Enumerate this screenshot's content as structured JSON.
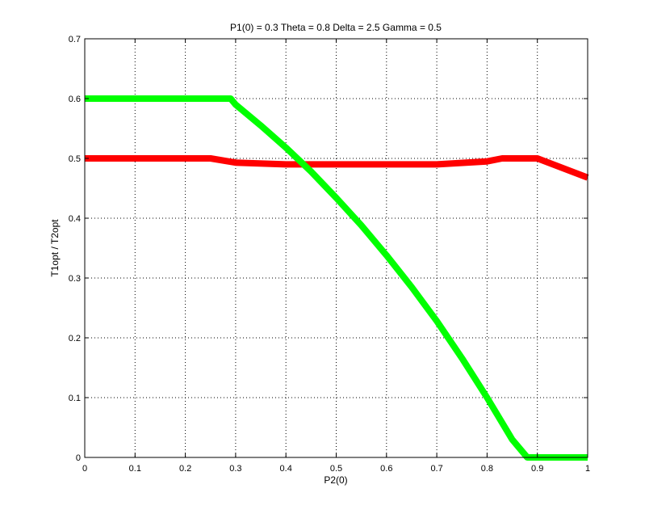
{
  "chart_data": {
    "type": "line",
    "title": "P1(0) = 0.3 Theta = 0.8 Delta = 2.5 Gamma = 0.5",
    "xlabel": "P2(0)",
    "ylabel": "T1opt / T2opt",
    "xlim": [
      0,
      1
    ],
    "ylim": [
      0,
      0.7
    ],
    "x_ticks": [
      0,
      0.1,
      0.2,
      0.3,
      0.4,
      0.5,
      0.6,
      0.7,
      0.8,
      0.9,
      1
    ],
    "x_tick_labels": [
      "0",
      "0.1",
      "0.2",
      "0.3",
      "0.4",
      "0.5",
      "0.6",
      "0.7",
      "0.8",
      "0.9",
      "1"
    ],
    "y_ticks": [
      0,
      0.1,
      0.2,
      0.3,
      0.4,
      0.5,
      0.6,
      0.7
    ],
    "y_tick_labels": [
      "0",
      "0.1",
      "0.2",
      "0.3",
      "0.4",
      "0.5",
      "0.6",
      "0.7"
    ],
    "grid": true,
    "series": [
      {
        "color": "#ff0000",
        "x": [
          0,
          0.25,
          0.3,
          0.4,
          0.45,
          0.5,
          0.6,
          0.7,
          0.8,
          0.83,
          0.9,
          1
        ],
        "y": [
          0.5,
          0.5,
          0.493,
          0.49,
          0.49,
          0.49,
          0.49,
          0.49,
          0.495,
          0.5,
          0.5,
          0.468
        ]
      },
      {
        "color": "#00ff00",
        "x": [
          0,
          0.29,
          0.3,
          0.35,
          0.4,
          0.45,
          0.5,
          0.55,
          0.6,
          0.65,
          0.7,
          0.75,
          0.8,
          0.85,
          0.88,
          0.9,
          1
        ],
        "y": [
          0.6,
          0.6,
          0.59,
          0.555,
          0.518,
          0.478,
          0.434,
          0.388,
          0.338,
          0.285,
          0.228,
          0.166,
          0.1,
          0.03,
          0,
          0,
          0
        ]
      }
    ]
  }
}
